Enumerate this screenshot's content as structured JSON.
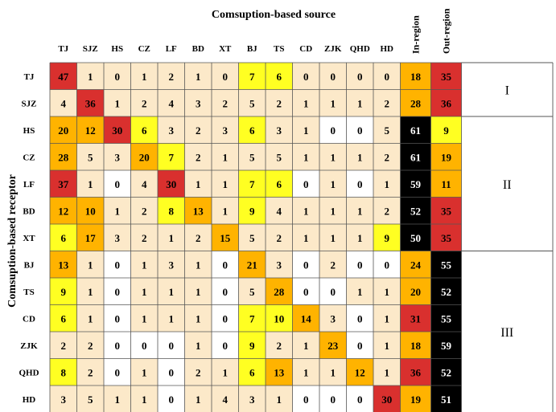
{
  "chart_data": {
    "type": "heatmap",
    "title": "Comsuption-based source",
    "ylabel": "Comsuption-based receptor",
    "columns": [
      "TJ",
      "SJZ",
      "HS",
      "CZ",
      "LF",
      "BD",
      "XT",
      "BJ",
      "TS",
      "CD",
      "ZJK",
      "QHD",
      "HD"
    ],
    "summary_columns": [
      "In-region",
      "Out-region"
    ],
    "rows": [
      "TJ",
      "SJZ",
      "HS",
      "CZ",
      "LF",
      "BD",
      "XT",
      "BJ",
      "TS",
      "CD",
      "ZJK",
      "QHD",
      "HD"
    ],
    "values": [
      [
        47,
        1,
        0,
        1,
        2,
        1,
        0,
        7,
        6,
        0,
        0,
        0,
        0
      ],
      [
        4,
        36,
        1,
        2,
        4,
        3,
        2,
        5,
        2,
        1,
        1,
        1,
        2
      ],
      [
        20,
        12,
        30,
        6,
        3,
        2,
        3,
        6,
        3,
        1,
        0,
        0,
        5
      ],
      [
        28,
        5,
        3,
        20,
        7,
        2,
        1,
        5,
        5,
        1,
        1,
        1,
        2
      ],
      [
        37,
        1,
        0,
        4,
        30,
        1,
        1,
        7,
        6,
        0,
        1,
        0,
        1
      ],
      [
        12,
        10,
        1,
        2,
        8,
        13,
        1,
        9,
        4,
        1,
        1,
        1,
        2
      ],
      [
        6,
        17,
        3,
        2,
        1,
        2,
        15,
        5,
        2,
        1,
        1,
        1,
        9
      ],
      [
        13,
        1,
        0,
        1,
        3,
        1,
        0,
        21,
        3,
        0,
        2,
        0,
        0
      ],
      [
        9,
        1,
        0,
        1,
        1,
        1,
        0,
        5,
        28,
        0,
        0,
        1,
        1
      ],
      [
        6,
        1,
        0,
        1,
        1,
        1,
        0,
        7,
        10,
        14,
        3,
        0,
        1
      ],
      [
        2,
        2,
        0,
        0,
        0,
        1,
        0,
        9,
        2,
        1,
        23,
        0,
        1
      ],
      [
        8,
        2,
        0,
        1,
        0,
        2,
        1,
        6,
        13,
        1,
        1,
        12,
        1
      ],
      [
        3,
        5,
        1,
        1,
        0,
        1,
        4,
        3,
        1,
        0,
        0,
        0,
        30
      ]
    ],
    "summary_values": [
      [
        18,
        35
      ],
      [
        28,
        36
      ],
      [
        61,
        9
      ],
      [
        61,
        19
      ],
      [
        59,
        11
      ],
      [
        52,
        35
      ],
      [
        50,
        35
      ],
      [
        24,
        55
      ],
      [
        20,
        52
      ],
      [
        31,
        55
      ],
      [
        18,
        59
      ],
      [
        36,
        52
      ],
      [
        19,
        51
      ]
    ],
    "groups": [
      {
        "label": "I",
        "rows": [
          0,
          1
        ]
      },
      {
        "label": "II",
        "rows": [
          2,
          6
        ]
      },
      {
        "label": "III",
        "rows": [
          7,
          12
        ]
      }
    ],
    "colors": {
      "white": "#ffffff",
      "cream": "#fce9c9",
      "yellow": "#ffff22",
      "orange": "#ffb300",
      "red": "#d9302e",
      "black": "#000000"
    },
    "cell_colors": [
      [
        "red",
        "cream",
        "cream",
        "cream",
        "cream",
        "cream",
        "cream",
        "yellow",
        "yellow",
        "cream",
        "cream",
        "cream",
        "cream"
      ],
      [
        "cream",
        "red",
        "cream",
        "cream",
        "cream",
        "cream",
        "cream",
        "cream",
        "cream",
        "cream",
        "cream",
        "cream",
        "cream"
      ],
      [
        "orange",
        "orange",
        "red",
        "yellow",
        "cream",
        "cream",
        "cream",
        "yellow",
        "cream",
        "cream",
        "white",
        "white",
        "cream"
      ],
      [
        "orange",
        "cream",
        "cream",
        "orange",
        "yellow",
        "cream",
        "cream",
        "cream",
        "cream",
        "cream",
        "cream",
        "cream",
        "cream"
      ],
      [
        "red",
        "cream",
        "white",
        "cream",
        "red",
        "cream",
        "cream",
        "yellow",
        "yellow",
        "white",
        "cream",
        "white",
        "cream"
      ],
      [
        "orange",
        "orange",
        "cream",
        "cream",
        "yellow",
        "orange",
        "cream",
        "yellow",
        "cream",
        "cream",
        "cream",
        "cream",
        "cream"
      ],
      [
        "yellow",
        "orange",
        "cream",
        "cream",
        "cream",
        "cream",
        "orange",
        "cream",
        "cream",
        "cream",
        "cream",
        "cream",
        "yellow"
      ],
      [
        "orange",
        "cream",
        "white",
        "cream",
        "cream",
        "cream",
        "white",
        "orange",
        "cream",
        "white",
        "cream",
        "white",
        "white"
      ],
      [
        "yellow",
        "cream",
        "white",
        "cream",
        "cream",
        "cream",
        "white",
        "cream",
        "orange",
        "white",
        "white",
        "cream",
        "cream"
      ],
      [
        "yellow",
        "cream",
        "white",
        "cream",
        "cream",
        "cream",
        "white",
        "yellow",
        "yellow",
        "orange",
        "cream",
        "white",
        "cream"
      ],
      [
        "cream",
        "cream",
        "white",
        "white",
        "white",
        "cream",
        "white",
        "yellow",
        "cream",
        "cream",
        "orange",
        "white",
        "cream"
      ],
      [
        "yellow",
        "cream",
        "white",
        "cream",
        "white",
        "cream",
        "cream",
        "yellow",
        "orange",
        "cream",
        "cream",
        "orange",
        "cream"
      ],
      [
        "cream",
        "cream",
        "cream",
        "cream",
        "white",
        "cream",
        "cream",
        "cream",
        "cream",
        "white",
        "white",
        "white",
        "red"
      ]
    ],
    "summary_colors": [
      [
        "orange",
        "red"
      ],
      [
        "orange",
        "red"
      ],
      [
        "black",
        "yellow"
      ],
      [
        "black",
        "orange"
      ],
      [
        "black",
        "orange"
      ],
      [
        "black",
        "red"
      ],
      [
        "black",
        "red"
      ],
      [
        "orange",
        "black"
      ],
      [
        "orange",
        "black"
      ],
      [
        "red",
        "black"
      ],
      [
        "orange",
        "black"
      ],
      [
        "red",
        "black"
      ],
      [
        "orange",
        "black"
      ]
    ]
  }
}
